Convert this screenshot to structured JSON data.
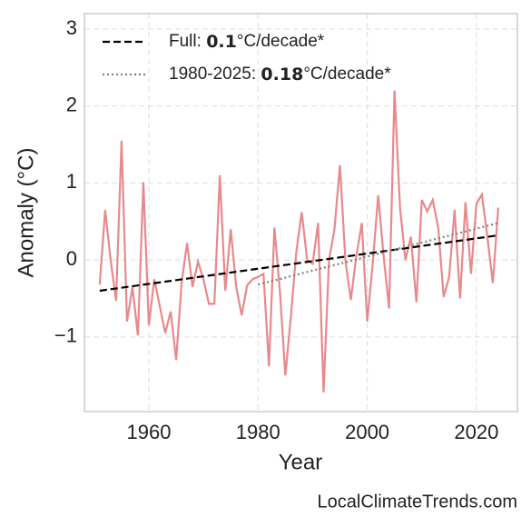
{
  "chart_data": {
    "type": "line",
    "xlabel": "Year",
    "ylabel": "Anomaly (°C)",
    "watermark": "LocalClimateTrends.com",
    "xlim": [
      1948.2,
      2027.5
    ],
    "ylim": [
      -1.97,
      3.2
    ],
    "xticks": [
      1960,
      1980,
      2000,
      2020
    ],
    "yticks": [
      {
        "value": -1,
        "label": "−1"
      },
      0,
      1,
      2,
      3
    ],
    "grid": true,
    "legend_position": "upper left",
    "series": [
      {
        "color": "#e8898b",
        "style": "solid",
        "x": [
          1951,
          1952,
          1953,
          1954,
          1955,
          1956,
          1957,
          1958,
          1959,
          1960,
          1961,
          1962,
          1963,
          1964,
          1965,
          1966,
          1967,
          1968,
          1969,
          1970,
          1971,
          1972,
          1973,
          1974,
          1975,
          1976,
          1977,
          1978,
          1979,
          1980,
          1981,
          1982,
          1983,
          1984,
          1985,
          1986,
          1987,
          1988,
          1989,
          1990,
          1991,
          1992,
          1993,
          1994,
          1995,
          1996,
          1997,
          1998,
          1999,
          2000,
          2001,
          2002,
          2003,
          2004,
          2005,
          2006,
          2007,
          2008,
          2009,
          2010,
          2011,
          2012,
          2013,
          2014,
          2015,
          2016,
          2017,
          2018,
          2019,
          2020,
          2021,
          2022,
          2023,
          2024
        ],
        "values": [
          -0.32,
          0.65,
          0.0,
          -0.53,
          1.55,
          -0.8,
          -0.35,
          -0.98,
          1.01,
          -0.85,
          -0.25,
          -0.6,
          -0.95,
          -0.67,
          -1.3,
          -0.3,
          0.22,
          -0.35,
          -0.02,
          -0.25,
          -0.57,
          -0.57,
          1.1,
          -0.4,
          0.4,
          -0.35,
          -0.72,
          -0.33,
          -0.25,
          -0.22,
          -0.18,
          -1.38,
          0.42,
          -0.4,
          -1.5,
          -0.75,
          0.1,
          0.62,
          0.0,
          -0.05,
          0.48,
          -1.72,
          0.0,
          0.4,
          1.23,
          0.0,
          -0.52,
          0.05,
          0.48,
          -0.8,
          -0.05,
          0.84,
          0.05,
          -0.63,
          2.2,
          0.68,
          0.0,
          0.3,
          -0.55,
          0.78,
          0.63,
          0.78,
          0.42,
          -0.48,
          -0.22,
          0.65,
          -0.5,
          0.75,
          -0.18,
          0.73,
          0.85,
          0.3,
          -0.3,
          0.68
        ]
      },
      {
        "color": "#000000",
        "style": "dashed",
        "legend_label": [
          "Full: ",
          0.1,
          "°C/decade*"
        ],
        "x": [
          1951,
          2024
        ],
        "values": [
          -0.4,
          0.32
        ]
      },
      {
        "color": "#808080",
        "style": "dotted",
        "legend_label": [
          "1980-2025: ",
          0.18,
          "°C/decade*"
        ],
        "x": [
          1980,
          2024
        ],
        "values": [
          -0.32,
          0.48
        ]
      }
    ]
  }
}
